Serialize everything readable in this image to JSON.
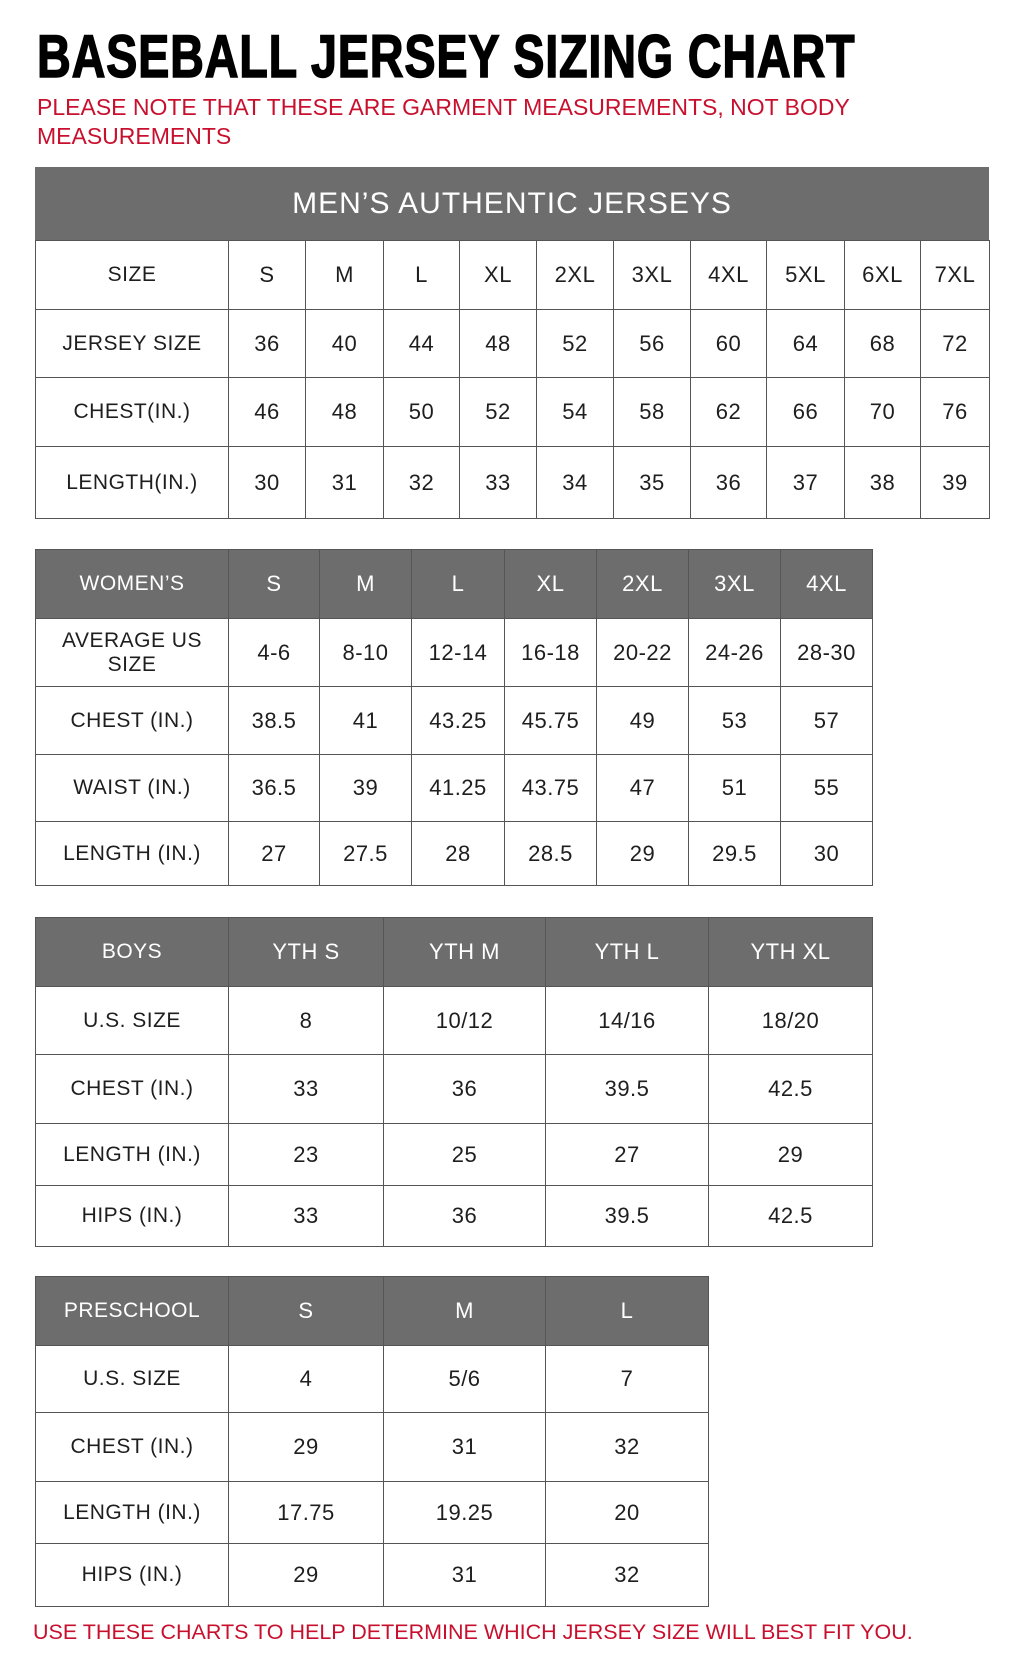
{
  "title": "BASEBALL JERSEY SIZING CHART",
  "note": "PLEASE NOTE THAT THESE ARE GARMENT MEASUREMENTS, NOT BODY MEASUREMENTS",
  "footer": "USE THESE CHARTS TO HELP DETERMINE WHICH JERSEY SIZE WILL BEST FIT YOU.",
  "colors": {
    "header_bg": "#6d6d6d",
    "accent_red": "#c8102e"
  },
  "mens": {
    "banner": "MEN’S AUTHENTIC JERSEYS",
    "rows": [
      [
        "SIZE",
        "S",
        "M",
        "L",
        "XL",
        "2XL",
        "3XL",
        "4XL",
        "5XL",
        "6XL",
        "7XL"
      ],
      [
        "JERSEY SIZE",
        "36",
        "40",
        "44",
        "48",
        "52",
        "56",
        "60",
        "64",
        "68",
        "72"
      ],
      [
        "CHEST(IN.)",
        "46",
        "48",
        "50",
        "52",
        "54",
        "58",
        "62",
        "66",
        "70",
        "76"
      ],
      [
        "LENGTH(IN.)",
        "30",
        "31",
        "32",
        "33",
        "34",
        "35",
        "36",
        "37",
        "38",
        "39"
      ]
    ]
  },
  "womens": {
    "rows": [
      [
        "WOMEN’S",
        "S",
        "M",
        "L",
        "XL",
        "2XL",
        "3XL",
        "4XL"
      ],
      [
        "AVERAGE US SIZE",
        "4-6",
        "8-10",
        "12-14",
        "16-18",
        "20-22",
        "24-26",
        "28-30"
      ],
      [
        "CHEST (IN.)",
        "38.5",
        "41",
        "43.25",
        "45.75",
        "49",
        "53",
        "57"
      ],
      [
        "WAIST (IN.)",
        "36.5",
        "39",
        "41.25",
        "43.75",
        "47",
        "51",
        "55"
      ],
      [
        "LENGTH (IN.)",
        "27",
        "27.5",
        "28",
        "28.5",
        "29",
        "29.5",
        "30"
      ]
    ]
  },
  "boys": {
    "rows": [
      [
        "BOYS",
        "YTH S",
        "YTH M",
        "YTH L",
        "YTH XL"
      ],
      [
        "U.S. SIZE",
        "8",
        "10/12",
        "14/16",
        "18/20"
      ],
      [
        "CHEST (IN.)",
        "33",
        "36",
        "39.5",
        "42.5"
      ],
      [
        "LENGTH (IN.)",
        "23",
        "25",
        "27",
        "29"
      ],
      [
        "HIPS (IN.)",
        "33",
        "36",
        "39.5",
        "42.5"
      ]
    ]
  },
  "preschool": {
    "rows": [
      [
        "PRESCHOOL",
        "S",
        "M",
        "L"
      ],
      [
        "U.S. SIZE",
        "4",
        "5/6",
        "7"
      ],
      [
        "CHEST (IN.)",
        "29",
        "31",
        "32"
      ],
      [
        "LENGTH (IN.)",
        "17.75",
        "19.25",
        "20"
      ],
      [
        "HIPS (IN.)",
        "29",
        "31",
        "32"
      ]
    ]
  }
}
